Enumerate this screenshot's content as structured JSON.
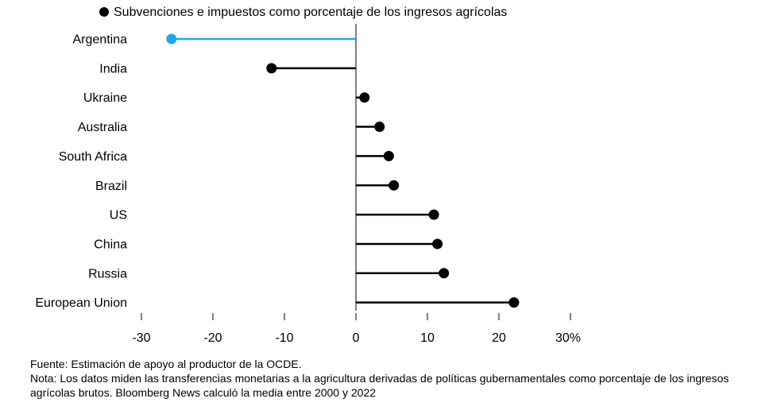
{
  "chart_data": {
    "type": "lollipop",
    "legend": {
      "label": "Subvenciones e impuestos como porcentaje de los ingresos agrícolas",
      "marker_color": "#000000",
      "placement": "top"
    },
    "categories": [
      "Argentina",
      "India",
      "Ukraine",
      "Australia",
      "South Africa",
      "Brazil",
      "US",
      "China",
      "Russia",
      "European Union"
    ],
    "values": [
      -25.8,
      -11.8,
      1.2,
      3.3,
      4.6,
      5.3,
      10.9,
      11.4,
      12.3,
      22.1
    ],
    "highlight": {
      "category": "Argentina",
      "color": "#1ea7ee"
    },
    "default_color": "#000000",
    "xlim": [
      -30,
      30
    ],
    "x_ticks": [
      -30,
      -20,
      -10,
      0,
      10,
      20,
      30
    ],
    "x_tick_labels": [
      "-30",
      "-20",
      "-10",
      "0",
      "10",
      "20",
      "30%"
    ],
    "grid": false
  },
  "notes": {
    "source": "Fuente: Estimación de apoyo al productor de la OCDE.",
    "note": "Nota: Los datos miden las transferencias monetarias a la agricultura derivadas de políticas gubernamentales como porcentaje de los ingresos agrícolas brutos. Bloomberg News calculó la media entre 2000 y 2022"
  }
}
